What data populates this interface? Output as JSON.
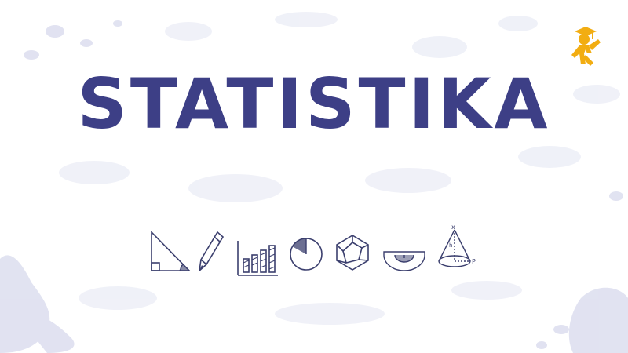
{
  "title": "STATISTIKA",
  "colors": {
    "title": "#3d3f86",
    "texture": "#c9cce6",
    "icons": "#3b3f6e",
    "logo": "#f2ad12"
  },
  "logo": {
    "icon": "graduate-figure-icon"
  },
  "icons": [
    "triangle-icon",
    "pencil-icon",
    "bar-chart-icon",
    "pie-chart-icon",
    "hexagon-cube-icon",
    "protractor-icon",
    "cone-icon"
  ],
  "cone_labels": {
    "apex": "x",
    "height": "h",
    "point": "P"
  }
}
